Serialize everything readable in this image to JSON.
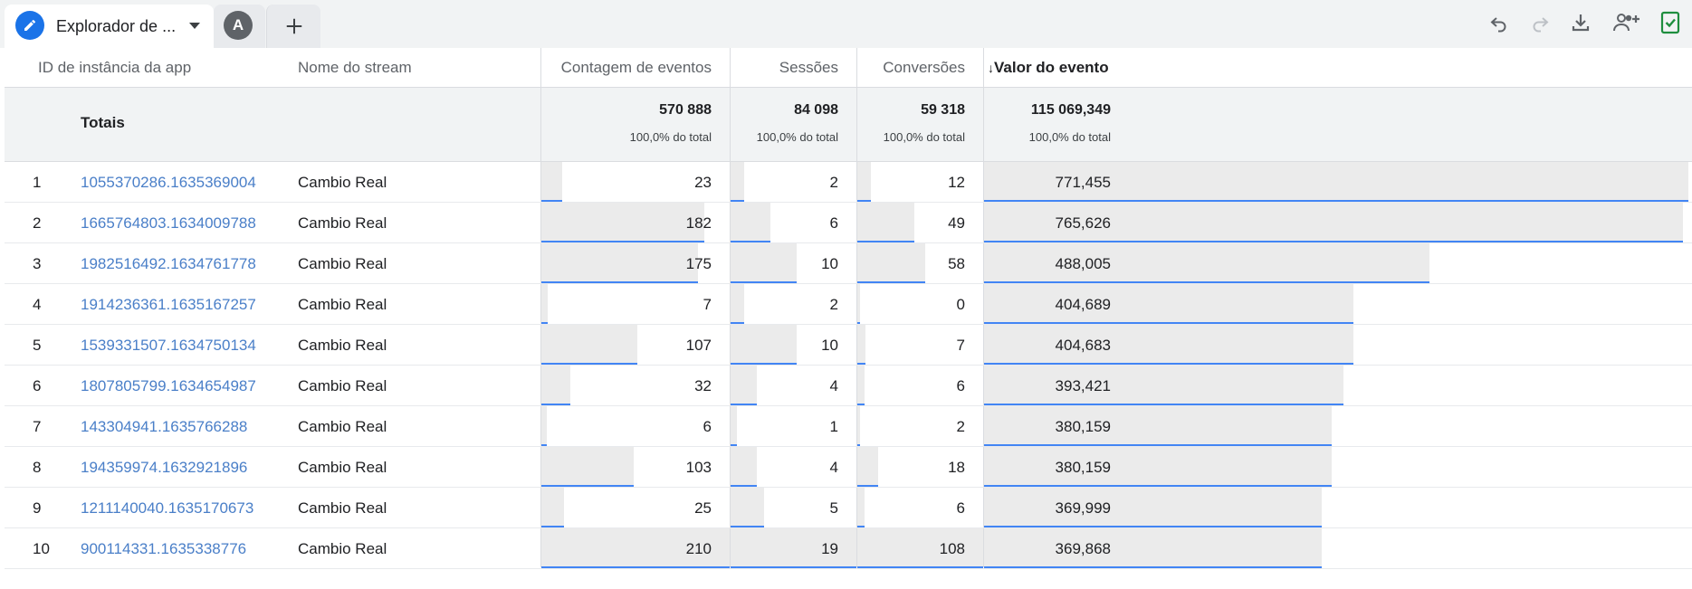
{
  "tab": {
    "title": "Explorador de ...",
    "icon": "pencil-icon"
  },
  "segment": {
    "avatar_letter": "A"
  },
  "toolbar": {
    "icons": [
      "undo-icon",
      "redo-icon",
      "download-icon",
      "share-user-icon",
      "check-sheet-icon"
    ],
    "accent": "#1a73e8",
    "success": "#1e8e3e"
  },
  "table": {
    "headers": {
      "app_instance": "ID de instância da app",
      "stream_name": "Nome do stream",
      "event_count": "Contagem de eventos",
      "sessions": "Sessões",
      "conversions": "Conversões",
      "event_value": "Valor do evento",
      "sort_arrow": "↓"
    },
    "totals": {
      "label": "Totais",
      "event_count": "570 888",
      "event_count_pct": "100,0% do total",
      "sessions": "84 098",
      "sessions_pct": "100,0% do total",
      "conversions": "59 318",
      "conversions_pct": "100,0% do total",
      "event_value": "115 069,349",
      "event_value_pct": "100,0% do total"
    },
    "bar_color": "#4285f4",
    "rows": [
      {
        "num": "1",
        "id": "1055370286.1635369004",
        "stream": "Cambio Real",
        "events": "23",
        "sessions": "2",
        "conversions": "12",
        "value": "771,455",
        "f_events": 0.11,
        "f_sessions": 0.105,
        "f_conv": 0.111,
        "f_value": 1.0
      },
      {
        "num": "2",
        "id": "1665764803.1634009788",
        "stream": "Cambio Real",
        "events": "182",
        "sessions": "6",
        "conversions": "49",
        "value": "765,626",
        "f_events": 0.867,
        "f_sessions": 0.316,
        "f_conv": 0.454,
        "f_value": 0.992
      },
      {
        "num": "3",
        "id": "1982516492.1634761778",
        "stream": "Cambio Real",
        "events": "175",
        "sessions": "10",
        "conversions": "58",
        "value": "488,005",
        "f_events": 0.833,
        "f_sessions": 0.526,
        "f_conv": 0.537,
        "f_value": 0.633
      },
      {
        "num": "4",
        "id": "1914236361.1635167257",
        "stream": "Cambio Real",
        "events": "7",
        "sessions": "2",
        "conversions": "0",
        "value": "404,689",
        "f_events": 0.033,
        "f_sessions": 0.105,
        "f_conv": 0.0,
        "f_value": 0.525
      },
      {
        "num": "5",
        "id": "1539331507.1634750134",
        "stream": "Cambio Real",
        "events": "107",
        "sessions": "10",
        "conversions": "7",
        "value": "404,683",
        "f_events": 0.51,
        "f_sessions": 0.526,
        "f_conv": 0.065,
        "f_value": 0.525
      },
      {
        "num": "6",
        "id": "1807805799.1634654987",
        "stream": "Cambio Real",
        "events": "32",
        "sessions": "4",
        "conversions": "6",
        "value": "393,421",
        "f_events": 0.152,
        "f_sessions": 0.211,
        "f_conv": 0.056,
        "f_value": 0.51
      },
      {
        "num": "7",
        "id": "143304941.1635766288",
        "stream": "Cambio Real",
        "events": "6",
        "sessions": "1",
        "conversions": "2",
        "value": "380,159",
        "f_events": 0.029,
        "f_sessions": 0.053,
        "f_conv": 0.019,
        "f_value": 0.493
      },
      {
        "num": "8",
        "id": "194359974.1632921896",
        "stream": "Cambio Real",
        "events": "103",
        "sessions": "4",
        "conversions": "18",
        "value": "380,159",
        "f_events": 0.49,
        "f_sessions": 0.211,
        "f_conv": 0.167,
        "f_value": 0.493
      },
      {
        "num": "9",
        "id": "1211140040.1635170673",
        "stream": "Cambio Real",
        "events": "25",
        "sessions": "5",
        "conversions": "6",
        "value": "369,999",
        "f_events": 0.119,
        "f_sessions": 0.263,
        "f_conv": 0.056,
        "f_value": 0.48
      },
      {
        "num": "10",
        "id": "900114331.1635338776",
        "stream": "Cambio Real",
        "events": "210",
        "sessions": "19",
        "conversions": "108",
        "value": "369,868",
        "f_events": 1.0,
        "f_sessions": 1.0,
        "f_conv": 1.0,
        "f_value": 0.479
      }
    ]
  }
}
